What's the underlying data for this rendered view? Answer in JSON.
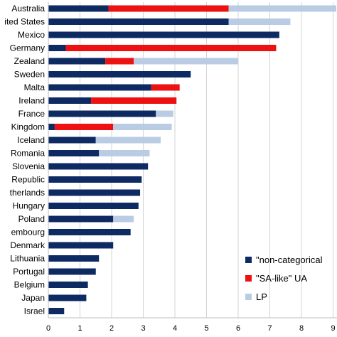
{
  "chart_data": {
    "type": "bar",
    "orientation": "horizontal",
    "stacked": true,
    "categories": [
      "Australia",
      "ited States",
      "Mexico",
      "Germany",
      "Zealand",
      "Sweden",
      "Malta",
      "Ireland",
      "France",
      "Kingdom",
      "Iceland",
      "Romania",
      "Slovenia",
      "Republic",
      "therlands",
      "Hungary",
      "Poland",
      "embourg",
      "Denmark",
      "Lithuania",
      "Portugal",
      "Belgium",
      "Japan",
      "Israel"
    ],
    "series": [
      {
        "name": "\"non-categorical",
        "color": "#0d2a63",
        "values": [
          1.9,
          5.7,
          7.3,
          0.55,
          1.8,
          4.5,
          3.25,
          1.35,
          3.4,
          0.2,
          1.5,
          1.6,
          3.15,
          2.95,
          2.9,
          2.85,
          2.05,
          2.6,
          2.05,
          1.6,
          1.5,
          1.25,
          1.2,
          0.5
        ]
      },
      {
        "name": "\"SA-like\" UA",
        "color": "#ee1111",
        "values": [
          3.8,
          0,
          0,
          6.65,
          0.9,
          0,
          0.9,
          2.7,
          0,
          1.85,
          0,
          0,
          0,
          0,
          0,
          0,
          0,
          0,
          0,
          0,
          0,
          0,
          0,
          0
        ]
      },
      {
        "name": "LP",
        "color": "#b9cce4",
        "values": [
          3.4,
          1.95,
          0,
          0,
          3.3,
          0,
          0,
          0,
          0.55,
          1.85,
          2.05,
          1.6,
          0,
          0,
          0,
          0,
          0.65,
          0,
          0,
          0,
          0,
          0,
          0,
          0
        ]
      }
    ],
    "xlim": [
      0,
      9
    ],
    "xticks": [
      "0",
      "1",
      "2",
      "3",
      "4",
      "5",
      "6",
      "7",
      "8",
      "9"
    ],
    "grid": {
      "vertical": true,
      "horizontal": false
    },
    "legend_position": "bottom-right"
  }
}
